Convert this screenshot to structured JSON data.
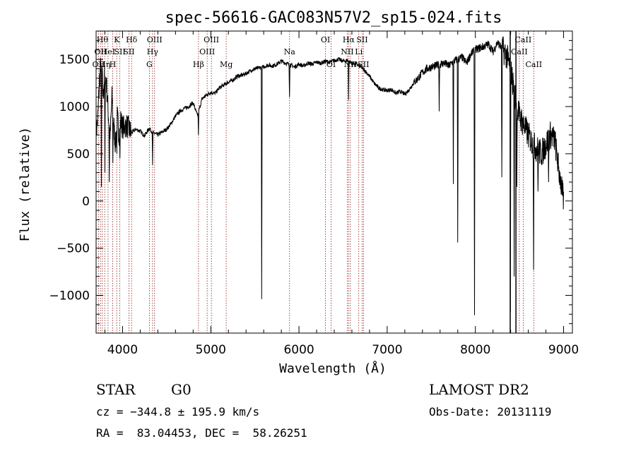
{
  "chart_data": {
    "type": "line",
    "title": "spec-56616-GAC083N57V2_sp15-024.fits",
    "xlabel": "Wavelength (Å)",
    "ylabel": "Flux (relative)",
    "xlim": [
      3700,
      9100
    ],
    "ylim": [
      -1400,
      1800
    ],
    "x_ticks": [
      4000,
      5000,
      6000,
      7000,
      8000,
      9000
    ],
    "y_ticks": [
      -1000,
      -500,
      0,
      500,
      1000,
      1500
    ],
    "x_tick_labels": [
      "4000",
      "5000",
      "6000",
      "7000",
      "8000",
      "9000"
    ],
    "y_tick_labels": [
      "−1000",
      "−500",
      "0",
      "500",
      "1000",
      "1500"
    ],
    "grid": false,
    "line_color": "#000000",
    "marker_color": "#8b1a1a",
    "spectrum": {
      "x": [
        3700,
        3720,
        3740,
        3760,
        3780,
        3800,
        3820,
        3840,
        3860,
        3880,
        3900,
        3920,
        3940,
        3960,
        3980,
        4000,
        4050,
        4100,
        4150,
        4200,
        4250,
        4300,
        4350,
        4400,
        4450,
        4500,
        4550,
        4600,
        4650,
        4700,
        4750,
        4800,
        4850,
        4900,
        4950,
        5000,
        5050,
        5100,
        5150,
        5200,
        5250,
        5300,
        5350,
        5400,
        5450,
        5500,
        5550,
        5600,
        5650,
        5700,
        5750,
        5800,
        5850,
        5900,
        5950,
        6000,
        6050,
        6100,
        6150,
        6200,
        6250,
        6300,
        6350,
        6400,
        6450,
        6500,
        6550,
        6600,
        6650,
        6700,
        6750,
        6800,
        6850,
        6900,
        6950,
        7000,
        7050,
        7100,
        7150,
        7200,
        7250,
        7300,
        7350,
        7400,
        7450,
        7500,
        7550,
        7600,
        7650,
        7700,
        7750,
        7800,
        7850,
        7900,
        7950,
        8000,
        8050,
        8100,
        8150,
        8200,
        8250,
        8300,
        8350,
        8400,
        8450,
        8500,
        8550,
        8600,
        8650,
        8700,
        8750,
        8800,
        8850,
        8900,
        8950,
        9000
      ],
      "y": [
        700,
        900,
        1300,
        1500,
        1100,
        1400,
        1200,
        900,
        700,
        1100,
        800,
        600,
        900,
        700,
        850,
        780,
        800,
        720,
        760,
        740,
        690,
        770,
        720,
        700,
        730,
        760,
        820,
        900,
        950,
        980,
        1000,
        1040,
        900,
        1080,
        1120,
        1150,
        1140,
        1200,
        1230,
        1260,
        1280,
        1320,
        1330,
        1350,
        1380,
        1400,
        1410,
        1420,
        1440,
        1430,
        1450,
        1480,
        1460,
        1440,
        1420,
        1450,
        1430,
        1460,
        1450,
        1470,
        1460,
        1480,
        1470,
        1490,
        1500,
        1480,
        1490,
        1460,
        1450,
        1420,
        1380,
        1320,
        1250,
        1200,
        1180,
        1170,
        1180,
        1140,
        1160,
        1130,
        1180,
        1250,
        1300,
        1360,
        1400,
        1420,
        1430,
        1450,
        1460,
        1430,
        1480,
        1500,
        1520,
        1460,
        1560,
        1600,
        1620,
        1640,
        1660,
        1580,
        1680,
        1620,
        1550,
        1400,
        1100,
        900,
        800,
        700,
        600,
        550,
        500,
        600,
        700,
        650,
        300,
        0
      ],
      "absorption": [
        {
          "x": 3760,
          "y": 150
        },
        {
          "x": 3800,
          "y": 300
        },
        {
          "x": 3850,
          "y": 200
        },
        {
          "x": 3890,
          "y": 400
        },
        {
          "x": 3935,
          "y": 500
        },
        {
          "x": 3970,
          "y": 450
        },
        {
          "x": 4340,
          "y": 380
        },
        {
          "x": 4860,
          "y": 700
        },
        {
          "x": 5578,
          "y": -1040
        },
        {
          "x": 5892,
          "y": 1100
        },
        {
          "x": 6563,
          "y": 1070
        },
        {
          "x": 7590,
          "y": 950
        },
        {
          "x": 7750,
          "y": 180
        },
        {
          "x": 7800,
          "y": -440
        },
        {
          "x": 7990,
          "y": -1210
        },
        {
          "x": 8300,
          "y": 250
        },
        {
          "x": 8398,
          "y": -1180
        },
        {
          "x": 8440,
          "y": -800
        },
        {
          "x": 8470,
          "y": 150
        },
        {
          "x": 8660,
          "y": -730
        },
        {
          "x": 8710,
          "y": 100
        },
        {
          "x": 8830,
          "y": 200
        },
        {
          "x": 8960,
          "y": 300
        }
      ]
    },
    "markers": [
      {
        "x": 3727,
        "label": "OII",
        "row": 3
      },
      {
        "x": 3750,
        "label": "OII",
        "row": 2
      },
      {
        "x": 3771,
        "label": "Hθ",
        "row": 1
      },
      {
        "x": 3798,
        "label": "Hη",
        "row": 3
      },
      {
        "x": 3835,
        "label": "HeI",
        "row": 2
      },
      {
        "x": 3889,
        "label": "H",
        "row": 3
      },
      {
        "x": 3934,
        "label": "K",
        "row": 1
      },
      {
        "x": 3969,
        "label": "SII",
        "row": 2
      },
      {
        "x": 4072,
        "label": "SII",
        "row": 2
      },
      {
        "x": 4102,
        "label": "Hδ",
        "row": 1
      },
      {
        "x": 4304,
        "label": "G",
        "row": 3
      },
      {
        "x": 4340,
        "label": "Hγ",
        "row": 2
      },
      {
        "x": 4363,
        "label": "OIII",
        "row": 1
      },
      {
        "x": 4861,
        "label": "Hβ",
        "row": 3
      },
      {
        "x": 4959,
        "label": "OIII",
        "row": 2
      },
      {
        "x": 5007,
        "label": "OIII",
        "row": 1
      },
      {
        "x": 5175,
        "label": "Mg",
        "row": 3
      },
      {
        "x": 5893,
        "label": "Na",
        "row": 2
      },
      {
        "x": 6300,
        "label": "OI",
        "row": 1
      },
      {
        "x": 6364,
        "label": "OI",
        "row": 3
      },
      {
        "x": 6548,
        "label": "NII",
        "row": 2
      },
      {
        "x": 6563,
        "label": "Hα",
        "row": 1
      },
      {
        "x": 6583,
        "label": "NII",
        "row": 3
      },
      {
        "x": 6678,
        "label": "Li",
        "row": 2
      },
      {
        "x": 6716,
        "label": "SII",
        "row": 1
      },
      {
        "x": 6731,
        "label": "SII",
        "row": 3
      },
      {
        "x": 8498,
        "label": "CaII",
        "row": 2
      },
      {
        "x": 8542,
        "label": "CaII",
        "row": 1
      },
      {
        "x": 8662,
        "label": "CaII",
        "row": 3
      }
    ],
    "solid_marker_x": [
      8395,
      8460
    ]
  },
  "info": {
    "class_label": "STAR",
    "subclass_label": "G0",
    "survey": "LAMOST DR2",
    "cz": "cz = −344.8 ± 195.9 km/s",
    "obs_date": "Obs-Date: 20131119",
    "coords": "RA =  83.04453, DEC =  58.26251"
  }
}
